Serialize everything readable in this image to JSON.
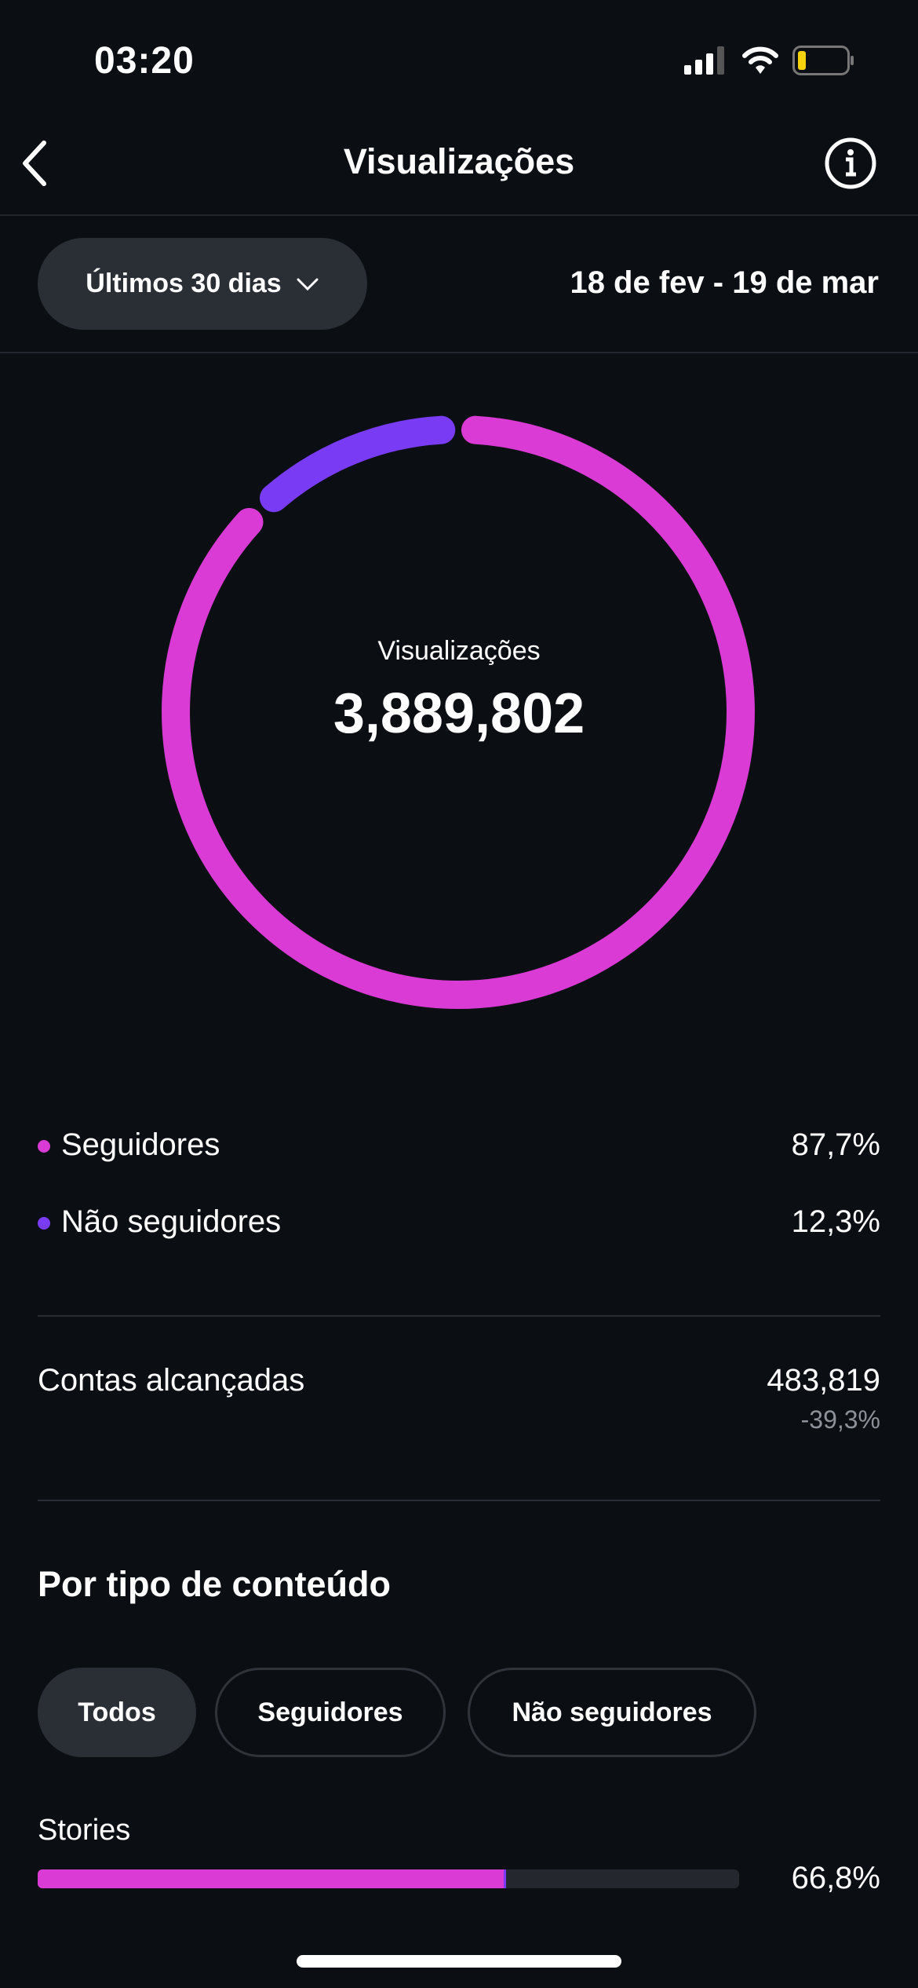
{
  "status_bar": {
    "time": "03:20",
    "battery_color": "#f5d20a"
  },
  "header": {
    "title": "Visualizações",
    "back_icon": "chevron-left-icon",
    "info_icon": "info-icon"
  },
  "filter": {
    "period_label": "Últimos 30 dias",
    "date_range": "18 de fev - 19 de mar"
  },
  "donut": {
    "label": "Visualizações",
    "value": "3,889,802",
    "segments": [
      {
        "name": "Seguidores",
        "percent": 87.7,
        "color": "#d93bd4"
      },
      {
        "name": "Não seguidores",
        "percent": 12.3,
        "color": "#7a3bf5"
      }
    ]
  },
  "legend": [
    {
      "label": "Seguidores",
      "value": "87,7%",
      "color": "#d93bd4"
    },
    {
      "label": "Não seguidores",
      "value": "12,3%",
      "color": "#7a3bf5"
    }
  ],
  "reach": {
    "label": "Contas alcançadas",
    "value": "483,819",
    "change": "-39,3%"
  },
  "content_type": {
    "heading": "Por tipo de conteúdo",
    "chips": [
      {
        "label": "Todos",
        "selected": true
      },
      {
        "label": "Seguidores",
        "selected": false
      },
      {
        "label": "Não seguidores",
        "selected": false
      }
    ],
    "items": [
      {
        "label": "Stories",
        "value": "66,8%",
        "percent": 66.8
      }
    ]
  }
}
